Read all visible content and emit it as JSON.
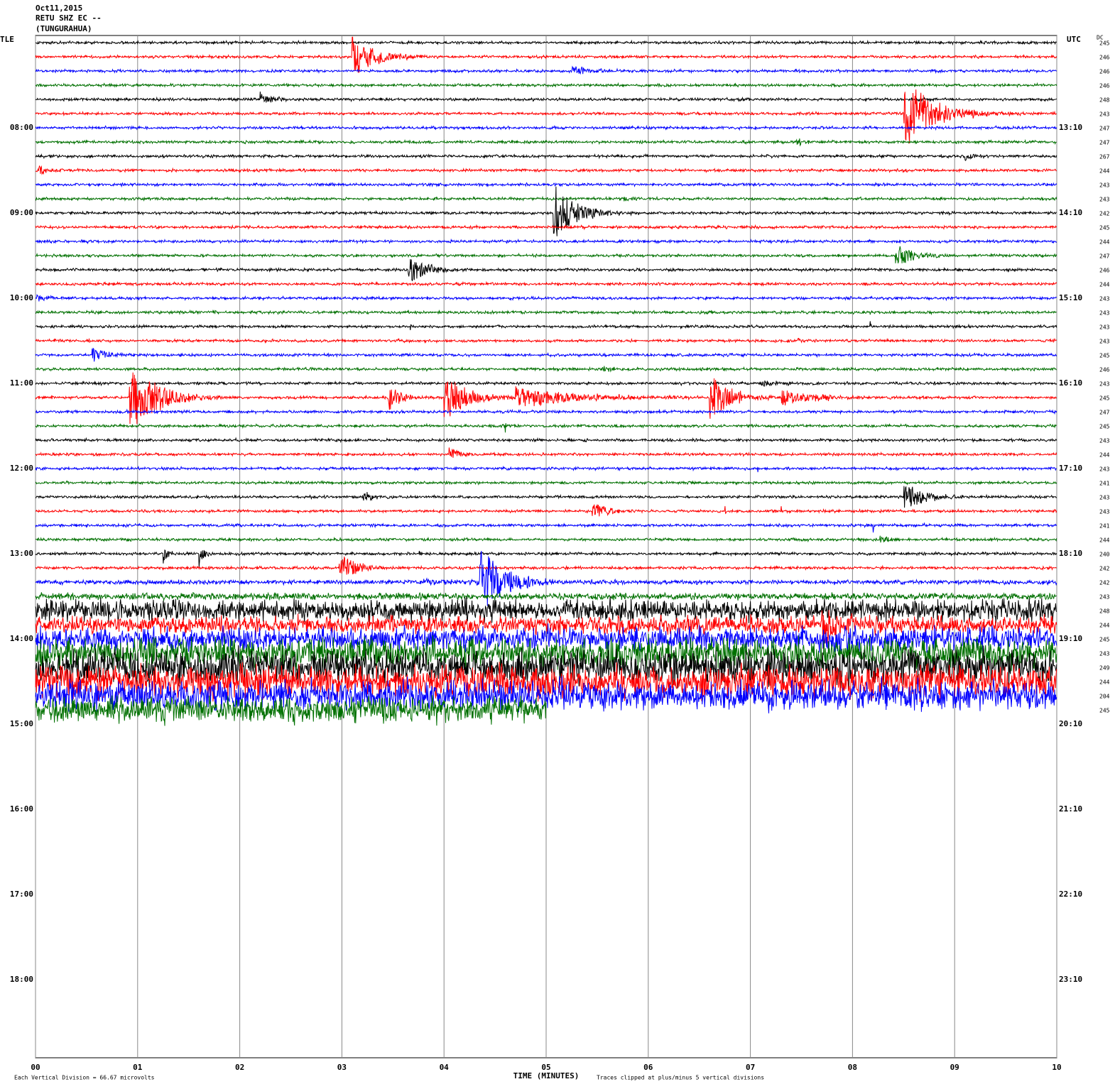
{
  "header": {
    "date": "Oct11,2015",
    "station": "RETU SHZ EC --",
    "location": "(TUNGURAHUA)"
  },
  "chart_data": {
    "type": "helicorder",
    "left_label": "TLE",
    "right_label": "UTC",
    "dc_label": "DC",
    "x_label": "TIME (MINUTES)",
    "scale_note": "Each Vertical Division =   66.67 microvolts",
    "clip_note": "Traces clipped at plus/minus 5 vertical divisions",
    "xlim": [
      0,
      10
    ],
    "xticks": [
      {
        "value": 0,
        "label": "00"
      },
      {
        "value": 1,
        "label": "01"
      },
      {
        "value": 2,
        "label": "02"
      },
      {
        "value": 3,
        "label": "03"
      },
      {
        "value": 4,
        "label": "04"
      },
      {
        "value": 5,
        "label": "05"
      },
      {
        "value": 6,
        "label": "06"
      },
      {
        "value": 7,
        "label": "07"
      },
      {
        "value": 8,
        "label": "08"
      },
      {
        "value": 9,
        "label": "09"
      },
      {
        "value": 10,
        "label": "10"
      }
    ],
    "ylim": [
      -0.5,
      71.5
    ],
    "yticks": [
      {
        "value": 6,
        "label": "08:00"
      },
      {
        "value": 12,
        "label": "09:00"
      },
      {
        "value": 18,
        "label": "10:00"
      },
      {
        "value": 24,
        "label": "11:00"
      },
      {
        "value": 30,
        "label": "12:00"
      },
      {
        "value": 36,
        "label": "13:00"
      },
      {
        "value": 42,
        "label": "14:00"
      },
      {
        "value": 48,
        "label": "15:00"
      },
      {
        "value": 54,
        "label": "16:00"
      },
      {
        "value": 60,
        "label": "17:00"
      },
      {
        "value": 66,
        "label": "18:00"
      }
    ],
    "y2ticks": [
      {
        "value": 6,
        "label": "13:10"
      },
      {
        "value": 12,
        "label": "14:10"
      },
      {
        "value": 18,
        "label": "15:10"
      },
      {
        "value": 24,
        "label": "16:10"
      },
      {
        "value": 30,
        "label": "17:10"
      },
      {
        "value": 36,
        "label": "18:10"
      },
      {
        "value": 42,
        "label": "19:10"
      },
      {
        "value": 48,
        "label": "20:10"
      },
      {
        "value": 54,
        "label": "21:10"
      },
      {
        "value": 60,
        "label": "22:10"
      },
      {
        "value": 66,
        "label": "23:10"
      }
    ],
    "colors": [
      "#000000",
      "#ff0000",
      "#0000ff",
      "#007000"
    ],
    "traces": [
      {
        "dc": 245,
        "noise": 1.3,
        "events": []
      },
      {
        "dc": 246,
        "noise": 1.3,
        "events": [
          [
            3.1,
            30,
            0.6
          ]
        ]
      },
      {
        "dc": 246,
        "noise": 1.3,
        "events": [
          [
            5.25,
            8,
            0.45
          ]
        ]
      },
      {
        "dc": 246,
        "noise": 1.3,
        "events": []
      },
      {
        "dc": 248,
        "noise": 1.3,
        "events": [
          [
            2.2,
            10,
            0.3
          ]
        ]
      },
      {
        "dc": 243,
        "noise": 1.3,
        "events": [
          [
            8.5,
            55,
            0.7
          ]
        ]
      },
      {
        "dc": 247,
        "noise": 1.3,
        "events": []
      },
      {
        "dc": 247,
        "noise": 1.3,
        "events": [
          [
            7.45,
            5,
            0.2
          ]
        ]
      },
      {
        "dc": 267,
        "noise": 1.3,
        "events": [
          [
            9.1,
            8,
            0.2
          ]
        ]
      },
      {
        "dc": 244,
        "noise": 1.3,
        "events": [
          [
            0.03,
            6,
            0.3
          ]
        ]
      },
      {
        "dc": 243,
        "noise": 1.3,
        "events": []
      },
      {
        "dc": 243,
        "noise": 1.3,
        "events": [
          [
            5.75,
            5,
            0.2
          ]
        ]
      },
      {
        "dc": 242,
        "noise": 1.3,
        "events": [
          [
            5.07,
            45,
            0.5
          ]
        ]
      },
      {
        "dc": 245,
        "noise": 1.3,
        "events": []
      },
      {
        "dc": 244,
        "noise": 1.3,
        "events": []
      },
      {
        "dc": 247,
        "noise": 1.3,
        "events": [
          [
            8.42,
            18,
            0.45
          ]
        ]
      },
      {
        "dc": 246,
        "noise": 1.3,
        "events": [
          [
            3.65,
            22,
            0.45
          ]
        ]
      },
      {
        "dc": 244,
        "noise": 1.3,
        "events": []
      },
      {
        "dc": 243,
        "noise": 1.3,
        "events": [
          [
            0.01,
            6,
            0.25
          ]
        ]
      },
      {
        "dc": 243,
        "noise": 1.3,
        "events": [
          [
            3.65,
            10,
            0.02
          ],
          [
            8.17,
            10,
            0.02
          ]
        ]
      },
      {
        "dc": 243,
        "noise": 1.3,
        "events": [
          [
            3.67,
            8,
            0.02
          ],
          [
            8.17,
            20,
            0.02
          ]
        ]
      },
      {
        "dc": 243,
        "noise": 1.3,
        "events": [
          [
            1.32,
            15,
            0.02
          ],
          [
            7.45,
            4,
            0.2
          ]
        ]
      },
      {
        "dc": 245,
        "noise": 1.3,
        "events": [
          [
            0.55,
            12,
            0.3
          ]
        ]
      },
      {
        "dc": 246,
        "noise": 1.3,
        "events": [
          [
            5.55,
            5,
            0.3
          ]
        ]
      },
      {
        "dc": 243,
        "noise": 1.3,
        "events": [
          [
            7.1,
            5,
            0.5
          ]
        ]
      },
      {
        "dc": 245,
        "noise": 1.3,
        "events": [
          [
            0.92,
            50,
            0.7
          ],
          [
            3.45,
            20,
            0.3
          ],
          [
            4.0,
            35,
            0.6
          ],
          [
            4.7,
            15,
            1.5
          ],
          [
            6.6,
            35,
            0.5
          ],
          [
            7.3,
            12,
            0.8
          ]
        ]
      },
      {
        "dc": 247,
        "noise": 1.3,
        "events": [
          [
            6.1,
            10,
            0.02
          ]
        ]
      },
      {
        "dc": 245,
        "noise": 1.3,
        "events": [
          [
            4.6,
            10,
            0.02
          ]
        ]
      },
      {
        "dc": 243,
        "noise": 1.3,
        "events": []
      },
      {
        "dc": 244,
        "noise": 1.3,
        "events": [
          [
            4.05,
            10,
            0.3
          ]
        ]
      },
      {
        "dc": 243,
        "noise": 1.3,
        "events": [
          [
            7.07,
            10,
            0.02
          ]
        ]
      },
      {
        "dc": 241,
        "noise": 1.3,
        "events": []
      },
      {
        "dc": 243,
        "noise": 1.3,
        "events": [
          [
            3.2,
            8,
            0.3
          ],
          [
            8.5,
            20,
            0.5
          ]
        ]
      },
      {
        "dc": 243,
        "noise": 1.3,
        "events": [
          [
            5.45,
            15,
            0.35
          ],
          [
            6.75,
            10,
            0.02
          ],
          [
            7.3,
            10,
            0.02
          ]
        ]
      },
      {
        "dc": 241,
        "noise": 1.3,
        "events": [
          [
            8.2,
            15,
            0.02
          ],
          [
            8.7,
            10,
            0.02
          ]
        ]
      },
      {
        "dc": 244,
        "noise": 1.3,
        "events": [
          [
            8.27,
            6,
            0.3
          ]
        ]
      },
      {
        "dc": 240,
        "noise": 1.3,
        "events": [
          [
            1.25,
            15,
            0.1
          ],
          [
            1.6,
            20,
            0.1
          ],
          [
            3.75,
            10,
            0.05
          ]
        ]
      },
      {
        "dc": 242,
        "noise": 1.3,
        "events": [
          [
            2.97,
            20,
            0.5
          ]
        ]
      },
      {
        "dc": 242,
        "noise": 2,
        "events": [
          [
            4.35,
            50,
            0.6
          ],
          [
            3.8,
            4,
            1.2
          ]
        ]
      },
      {
        "dc": 243,
        "noise": 3,
        "events": []
      },
      {
        "dc": 248,
        "noise": 10,
        "events": []
      },
      {
        "dc": 244,
        "noise": 8,
        "events": [
          [
            7.7,
            30,
            0.5
          ]
        ]
      },
      {
        "dc": 245,
        "noise": 11,
        "events": []
      },
      {
        "dc": 243,
        "noise": 14,
        "events": []
      },
      {
        "dc": 249,
        "noise": 16,
        "events": []
      },
      {
        "dc": 244,
        "noise": 15,
        "events": []
      },
      {
        "dc": 204,
        "noise": 14,
        "events": []
      },
      {
        "dc": 245,
        "noise": 12,
        "events": [],
        "end": 5
      }
    ]
  }
}
